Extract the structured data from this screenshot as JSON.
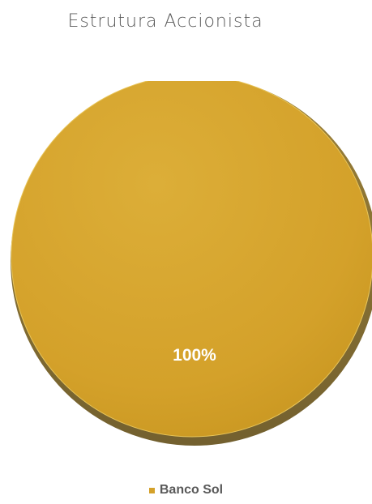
{
  "chart_data": {
    "type": "pie",
    "title": "Estrutura Accionista",
    "slices": [
      {
        "label": "Banco Sol",
        "value": 100,
        "data_label": "100%",
        "color": "#D4A12A"
      }
    ],
    "legend_position": "bottom"
  }
}
